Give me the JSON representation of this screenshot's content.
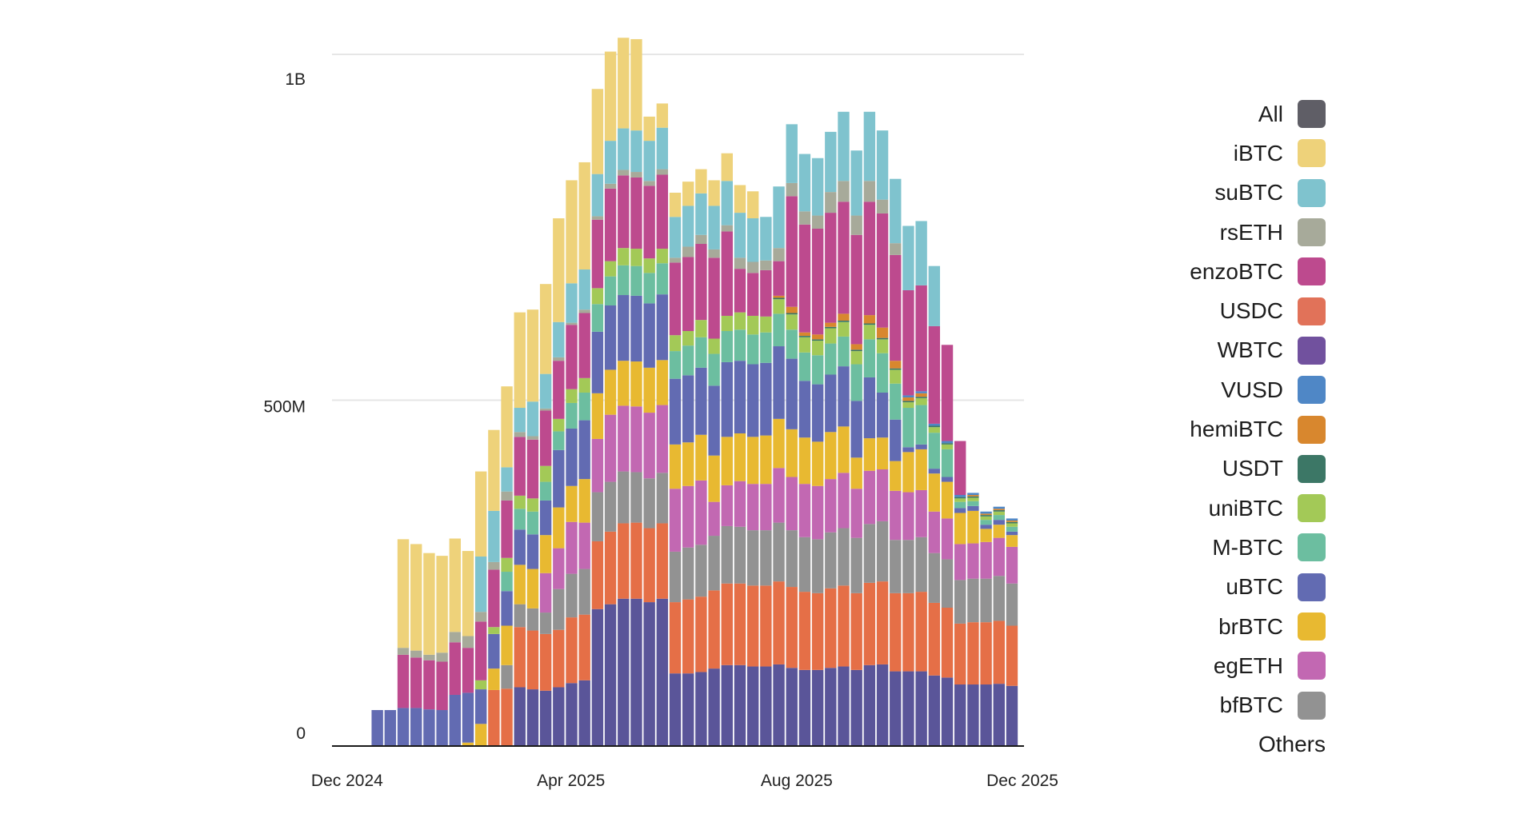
{
  "chart_data": {
    "type": "bar",
    "stacked": true,
    "title": "",
    "xlabel": "",
    "ylabel": "",
    "interval": "weekly",
    "xlim": [
      "2024-11-25",
      "2025-12-04"
    ],
    "ylim": [
      0,
      1050000000
    ],
    "y_ticks": [
      {
        "value": 0,
        "label": "0"
      },
      {
        "value": 500000000,
        "label": "500M"
      },
      {
        "value": 1000000000,
        "label": "1B"
      }
    ],
    "x_ticks": [
      {
        "date": "2024-12-01",
        "label": "Dec 2024"
      },
      {
        "date": "2025-04-01",
        "label": "Apr 2025"
      },
      {
        "date": "2025-08-01",
        "label": "Aug 2025"
      },
      {
        "date": "2025-12-01",
        "label": "Dec 2025"
      }
    ],
    "grid": "horizontal",
    "legend_position": "right",
    "value_unit": "millions",
    "first_week": "2024-12-16",
    "series": [
      {
        "name": "WBTC",
        "color": "#5a5599",
        "values": [
          0,
          0,
          0,
          0,
          0,
          0,
          0,
          0,
          0,
          0,
          0,
          85,
          82,
          80,
          85,
          91,
          95,
          198,
          205,
          213,
          213,
          208,
          213,
          105,
          105,
          107,
          112,
          117,
          117,
          115,
          115,
          118,
          113,
          110,
          110,
          113,
          115,
          110,
          117,
          118,
          108,
          108,
          108,
          102,
          99,
          89,
          89,
          89,
          90,
          87
        ]
      },
      {
        "name": "USDC",
        "color": "#e56f47",
        "values": [
          0,
          0,
          0,
          0,
          0,
          0,
          0,
          0,
          0,
          81,
          83,
          87,
          85,
          82,
          83,
          95,
          95,
          98,
          105,
          109,
          110,
          107,
          109,
          103,
          107,
          109,
          113,
          118,
          118,
          117,
          117,
          120,
          117,
          113,
          111,
          115,
          117,
          111,
          119,
          120,
          113,
          113,
          115,
          105,
          101,
          88,
          90,
          90,
          91,
          87
        ]
      },
      {
        "name": "bfBTC",
        "color": "#929292",
        "values": [
          0,
          0,
          0,
          0,
          0,
          0,
          0,
          0,
          0,
          0,
          34,
          33,
          32,
          31,
          59,
          63,
          66,
          71,
          72,
          75,
          73,
          72,
          73,
          73,
          75,
          75,
          79,
          83,
          82,
          80,
          80,
          85,
          82,
          79,
          78,
          81,
          83,
          80,
          85,
          87,
          77,
          77,
          79,
          72,
          70,
          63,
          63,
          63,
          65,
          61
        ]
      },
      {
        "name": "egETH",
        "color": "#c268b2",
        "values": [
          0,
          0,
          0,
          0,
          0,
          0,
          0,
          0,
          0,
          0,
          0,
          0,
          0,
          57,
          59,
          75,
          67,
          77,
          97,
          95,
          95,
          95,
          98,
          91,
          89,
          93,
          49,
          59,
          66,
          67,
          67,
          79,
          77,
          77,
          77,
          77,
          80,
          71,
          77,
          75,
          71,
          69,
          68,
          60,
          59,
          52,
          51,
          53,
          55,
          53
        ]
      },
      {
        "name": "brBTC",
        "color": "#e8b931",
        "values": [
          0,
          0,
          0,
          0,
          0,
          0,
          0,
          5,
          32,
          31,
          57,
          57,
          57,
          55,
          59,
          52,
          63,
          66,
          65,
          65,
          65,
          65,
          65,
          64,
          63,
          66,
          67,
          70,
          69,
          68,
          70,
          71,
          69,
          67,
          64,
          68,
          67,
          45,
          47,
          46,
          43,
          58,
          59,
          55,
          53,
          45,
          47,
          19,
          19,
          17
        ]
      },
      {
        "name": "uBTC",
        "color": "#626bb2",
        "values": [
          52,
          52,
          55,
          55,
          53,
          52,
          74,
          72,
          50,
          50,
          50,
          51,
          50,
          50,
          83,
          83,
          85,
          89,
          93,
          95,
          95,
          93,
          95,
          95,
          97,
          97,
          101,
          108,
          105,
          105,
          105,
          105,
          102,
          82,
          83,
          83,
          87,
          82,
          88,
          65,
          60,
          7,
          7,
          7,
          7,
          7,
          7,
          6,
          7,
          5
        ]
      },
      {
        "name": "M-BTC",
        "color": "#6cbea0",
        "values": [
          0,
          0,
          0,
          0,
          0,
          0,
          0,
          0,
          0,
          0,
          28,
          30,
          33,
          27,
          27,
          37,
          40,
          40,
          42,
          43,
          43,
          44,
          45,
          40,
          43,
          44,
          46,
          45,
          45,
          43,
          44,
          47,
          42,
          41,
          42,
          45,
          43,
          53,
          55,
          57,
          52,
          57,
          57,
          52,
          40,
          9,
          7,
          7,
          7,
          7
        ]
      },
      {
        "name": "uniBTC",
        "color": "#a3c957",
        "values": [
          0,
          0,
          0,
          0,
          0,
          0,
          0,
          0,
          13,
          10,
          20,
          19,
          19,
          23,
          18,
          20,
          21,
          23,
          22,
          25,
          25,
          21,
          21,
          23,
          21,
          25,
          22,
          22,
          25,
          27,
          23,
          21,
          22,
          22,
          21,
          22,
          21,
          19,
          21,
          20,
          20,
          8,
          10,
          8,
          7,
          5,
          5,
          5,
          5,
          5
        ]
      },
      {
        "name": "USDT",
        "color": "#3c7766",
        "values": [
          0,
          0,
          0,
          0,
          0,
          0,
          0,
          0,
          0,
          0,
          0,
          0,
          0,
          0,
          0,
          0,
          0,
          0,
          0,
          0,
          0,
          0,
          0,
          0,
          0,
          0,
          0,
          0,
          0,
          0,
          0,
          2,
          2,
          2,
          2,
          2,
          2,
          2,
          2,
          2,
          2,
          2,
          2,
          2,
          2,
          2,
          2,
          2,
          2,
          2
        ]
      },
      {
        "name": "hemiBTC",
        "color": "#d8872e",
        "values": [
          0,
          0,
          0,
          0,
          0,
          0,
          0,
          0,
          0,
          0,
          0,
          0,
          0,
          0,
          0,
          0,
          0,
          0,
          0,
          0,
          0,
          0,
          0,
          0,
          0,
          0,
          0,
          0,
          0,
          0,
          0,
          3,
          9,
          5,
          7,
          6,
          10,
          8,
          12,
          15,
          11,
          5,
          5,
          0,
          0,
          0,
          2,
          2,
          2,
          2
        ]
      },
      {
        "name": "VUSD",
        "color": "#4f87c6",
        "values": [
          0,
          0,
          0,
          0,
          0,
          0,
          0,
          0,
          0,
          0,
          0,
          0,
          0,
          0,
          0,
          0,
          0,
          0,
          0,
          0,
          0,
          0,
          0,
          0,
          0,
          0,
          0,
          0,
          0,
          0,
          0,
          0,
          0,
          0,
          0,
          0,
          0,
          0,
          0,
          0,
          0,
          3,
          3,
          3,
          3,
          3,
          3,
          3,
          3,
          3
        ]
      },
      {
        "name": "enzoBTC",
        "color": "#bd4a8e",
        "values": [
          0,
          0,
          77,
          73,
          71,
          70,
          76,
          65,
          85,
          83,
          83,
          85,
          85,
          80,
          84,
          93,
          94,
          99,
          105,
          105,
          103,
          105,
          107,
          105,
          107,
          110,
          117,
          122,
          63,
          62,
          67,
          50,
          160,
          156,
          153,
          159,
          162,
          158,
          164,
          165,
          153,
          152,
          153,
          141,
          139,
          78,
          0,
          0,
          0,
          0
        ]
      },
      {
        "name": "rsETH",
        "color": "#a7aa9a",
        "values": [
          0,
          0,
          10,
          10,
          8,
          13,
          15,
          17,
          14,
          11,
          13,
          7,
          5,
          3,
          5,
          3,
          5,
          5,
          7,
          8,
          8,
          7,
          8,
          7,
          15,
          13,
          12,
          9,
          16,
          16,
          14,
          19,
          19,
          19,
          19,
          30,
          30,
          28,
          30,
          20,
          17,
          0,
          0,
          0,
          0,
          0,
          0,
          0,
          0,
          0
        ]
      },
      {
        "name": "suBTC",
        "color": "#7fc3ce",
        "values": [
          0,
          0,
          0,
          0,
          0,
          0,
          0,
          0,
          80,
          74,
          35,
          35,
          50,
          50,
          51,
          57,
          58,
          61,
          62,
          60,
          60,
          58,
          60,
          59,
          59,
          60,
          63,
          64,
          65,
          63,
          63,
          89,
          85,
          83,
          83,
          87,
          100,
          94,
          100,
          100,
          93,
          93,
          93,
          87,
          0,
          0,
          0,
          0,
          0,
          0
        ]
      },
      {
        "name": "iBTC",
        "color": "#eed27a",
        "values": [
          0,
          0,
          157,
          154,
          147,
          140,
          135,
          123,
          123,
          117,
          117,
          138,
          133,
          130,
          150,
          149,
          155,
          123,
          129,
          131,
          132,
          35,
          35,
          35,
          35,
          35,
          37,
          40,
          40,
          39,
          0,
          0,
          0,
          0,
          0,
          0,
          0,
          0,
          0,
          0,
          0,
          0,
          0,
          0,
          0,
          0,
          0,
          0,
          0,
          0
        ]
      }
    ]
  },
  "legend": {
    "items": [
      {
        "label": "All",
        "color": "#5f5e66"
      },
      {
        "label": "iBTC",
        "color": "#eed27a"
      },
      {
        "label": "suBTC",
        "color": "#7fc3ce"
      },
      {
        "label": "rsETH",
        "color": "#a7aa9a"
      },
      {
        "label": "enzoBTC",
        "color": "#bd4a8e"
      },
      {
        "label": "USDC",
        "color": "#e17259"
      },
      {
        "label": "WBTC",
        "color": "#71519e"
      },
      {
        "label": "VUSD",
        "color": "#4f87c6"
      },
      {
        "label": "hemiBTC",
        "color": "#d8872e"
      },
      {
        "label": "USDT",
        "color": "#3c7766"
      },
      {
        "label": "uniBTC",
        "color": "#a3c957"
      },
      {
        "label": "M-BTC",
        "color": "#6cbea0"
      },
      {
        "label": "uBTC",
        "color": "#626bb2"
      },
      {
        "label": "brBTC",
        "color": "#e8b931"
      },
      {
        "label": "egETH",
        "color": "#c268b2"
      },
      {
        "label": "bfBTC",
        "color": "#929292"
      }
    ],
    "others_label": "Others"
  }
}
